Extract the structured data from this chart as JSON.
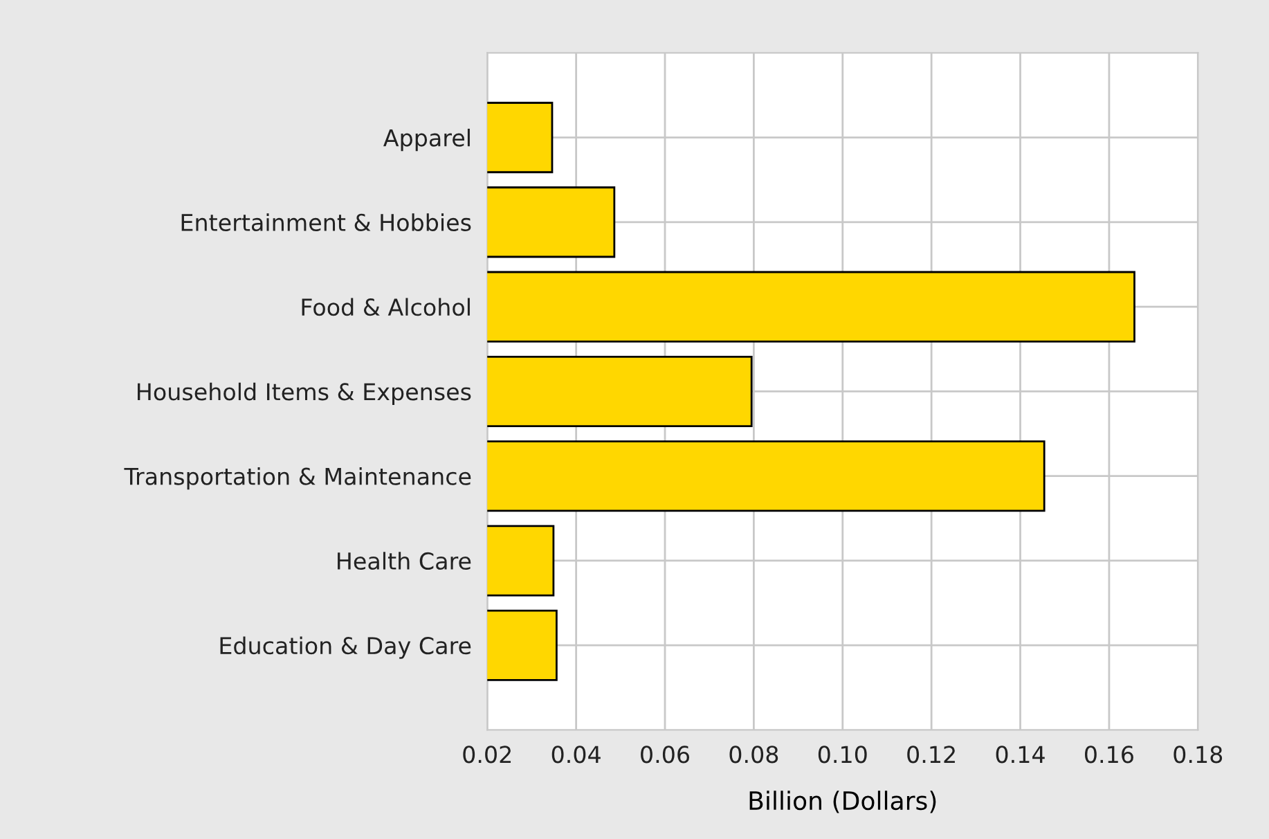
{
  "chart_data": {
    "type": "bar",
    "orientation": "horizontal",
    "xlabel": "Billion (Dollars)",
    "categories": [
      "Apparel",
      "Entertainment & Hobbies",
      "Food & Alcohol",
      "Household Items & Expenses",
      "Transportation & Maintenance",
      "Health Care",
      "Education & Day Care"
    ],
    "values": [
      0.0346,
      0.0486,
      0.1657,
      0.0795,
      0.1454,
      0.0349,
      0.0356
    ],
    "color": "#ffd700",
    "xlim": [
      0.02,
      0.18
    ],
    "xticks": [
      {
        "value": 0.02,
        "label": "0.02"
      },
      {
        "value": 0.04,
        "label": "0.04"
      },
      {
        "value": 0.06,
        "label": "0.06"
      },
      {
        "value": 0.08,
        "label": "0.08"
      },
      {
        "value": 0.1,
        "label": "0.10"
      },
      {
        "value": 0.12,
        "label": "0.12"
      },
      {
        "value": 0.14,
        "label": "0.14"
      },
      {
        "value": 0.16,
        "label": "0.16"
      },
      {
        "value": 0.18,
        "label": "0.18"
      }
    ],
    "grid": true,
    "legend": false
  }
}
